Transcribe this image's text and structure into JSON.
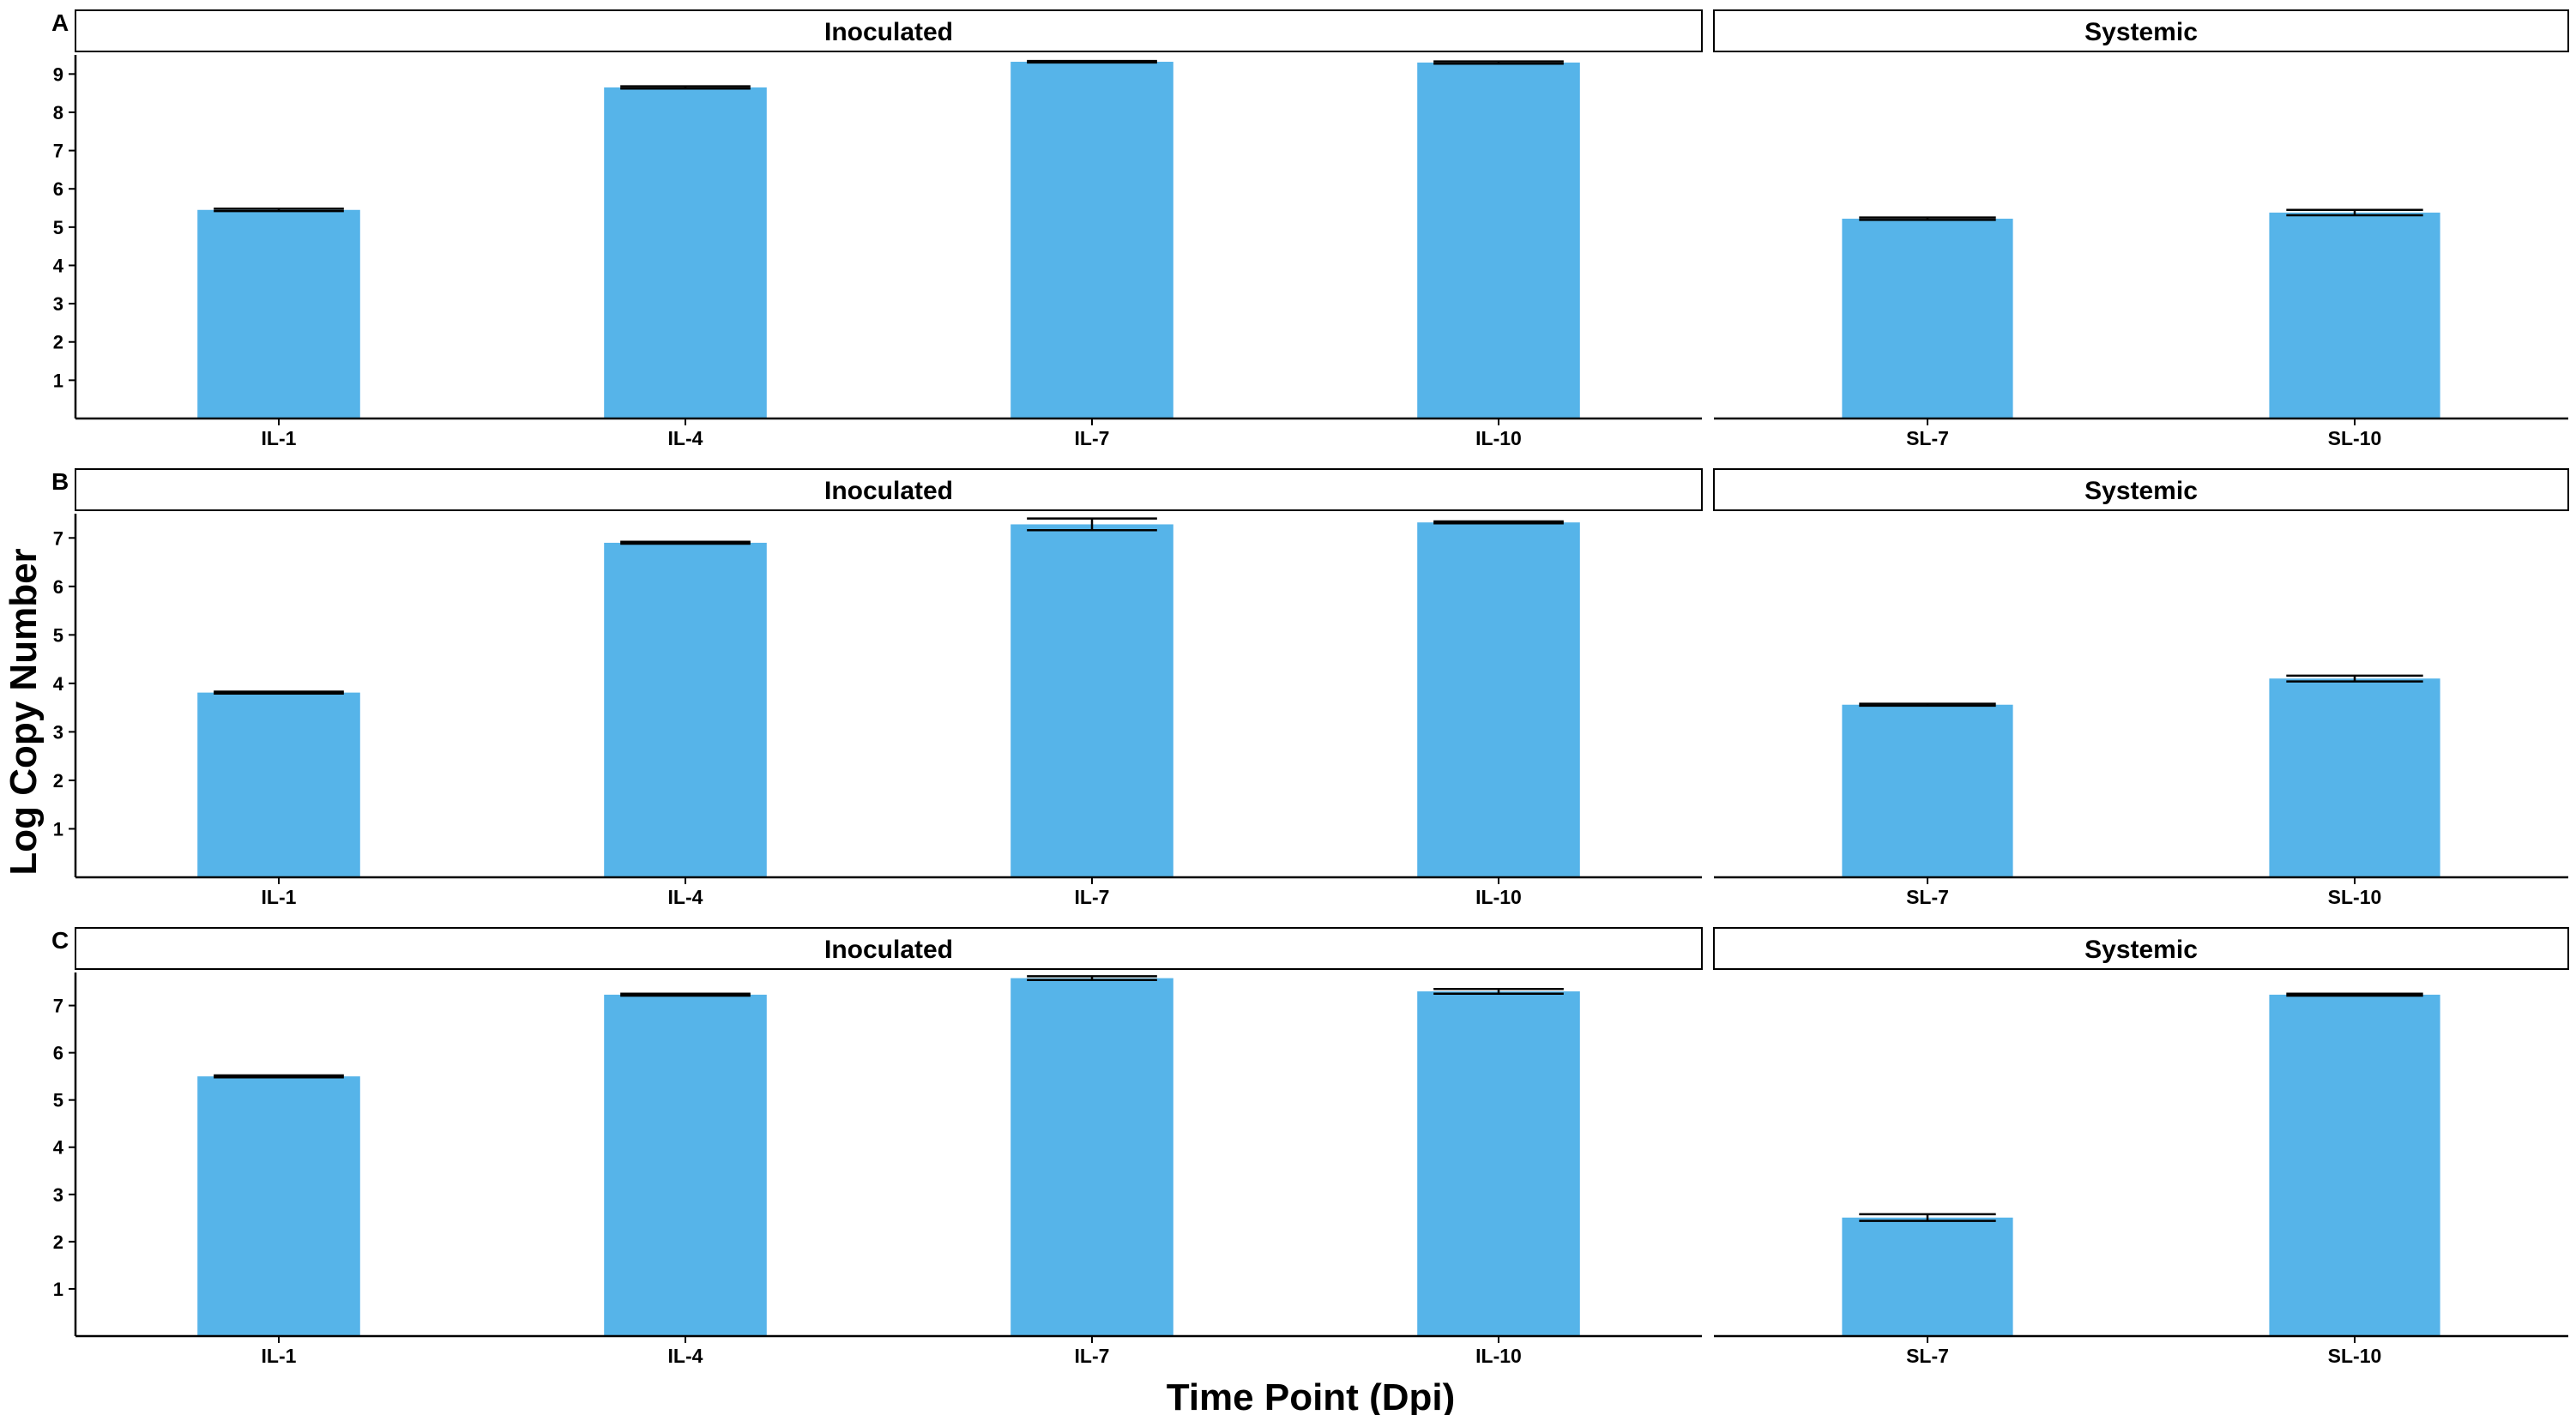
{
  "chart_data": {
    "type": "bar",
    "xlabel": "Time Point (Dpi)",
    "ylabel": "Log Copy Number",
    "bar_color": "#56B4E9",
    "error_color": "#000000",
    "grid": false,
    "legend": "none",
    "rows": [
      {
        "label": "A",
        "ylim": [
          0,
          9.5
        ],
        "yticks": [
          1,
          2,
          3,
          4,
          5,
          6,
          7,
          8,
          9
        ],
        "facets": [
          {
            "title": "Inoculated",
            "categories": [
              "IL-1",
              "IL-4",
              "IL-7",
              "IL-10"
            ],
            "values": [
              5.45,
              8.65,
              9.32,
              9.3
            ],
            "errors": [
              0.03,
              0.03,
              0.02,
              0.03
            ]
          },
          {
            "title": "Systemic",
            "categories": [
              "SL-7",
              "SL-10"
            ],
            "values": [
              5.22,
              5.38
            ],
            "errors": [
              0.03,
              0.07
            ]
          }
        ]
      },
      {
        "label": "B",
        "ylim": [
          0,
          7.5
        ],
        "yticks": [
          1,
          2,
          3,
          4,
          5,
          6,
          7
        ],
        "facets": [
          {
            "title": "Inoculated",
            "categories": [
              "IL-1",
              "IL-4",
              "IL-7",
              "IL-10"
            ],
            "values": [
              3.81,
              6.9,
              7.28,
              7.32
            ],
            "errors": [
              0.02,
              0.02,
              0.12,
              0.02
            ]
          },
          {
            "title": "Systemic",
            "categories": [
              "SL-7",
              "SL-10"
            ],
            "values": [
              3.56,
              4.1
            ],
            "errors": [
              0.02,
              0.06
            ]
          }
        ]
      },
      {
        "label": "C",
        "ylim": [
          0,
          7.7
        ],
        "yticks": [
          1,
          2,
          3,
          4,
          5,
          6,
          7
        ],
        "facets": [
          {
            "title": "Inoculated",
            "categories": [
              "IL-1",
              "IL-4",
              "IL-7",
              "IL-10"
            ],
            "values": [
              5.5,
              7.23,
              7.58,
              7.3
            ],
            "errors": [
              0.02,
              0.02,
              0.04,
              0.05
            ]
          },
          {
            "title": "Systemic",
            "categories": [
              "SL-7",
              "SL-10"
            ],
            "values": [
              2.51,
              7.23
            ],
            "errors": [
              0.07,
              0.02
            ]
          }
        ]
      }
    ]
  }
}
